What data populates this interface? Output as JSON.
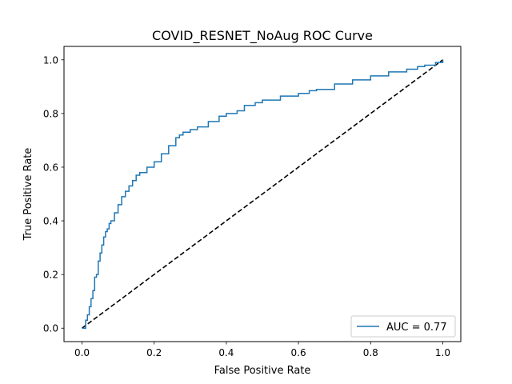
{
  "chart_data": {
    "type": "line",
    "title": "COVID_RESNET_NoAug ROC Curve",
    "xlabel": "False Positive Rate",
    "ylabel": "True Positive Rate",
    "xlim": [
      -0.05,
      1.05
    ],
    "ylim": [
      -0.05,
      1.05
    ],
    "xticks": [
      "0.0",
      "0.2",
      "0.4",
      "0.6",
      "0.8",
      "1.0"
    ],
    "yticks": [
      "0.0",
      "0.2",
      "0.4",
      "0.6",
      "0.8",
      "1.0"
    ],
    "grid": false,
    "legend_position": "lower right",
    "series": [
      {
        "name": "AUC = 0.77",
        "color": "#1f77b4",
        "style": "solid",
        "x": [
          0.0,
          0.01,
          0.015,
          0.02,
          0.025,
          0.03,
          0.035,
          0.04,
          0.045,
          0.05,
          0.055,
          0.06,
          0.065,
          0.07,
          0.075,
          0.08,
          0.09,
          0.1,
          0.11,
          0.12,
          0.13,
          0.14,
          0.15,
          0.16,
          0.18,
          0.2,
          0.22,
          0.24,
          0.26,
          0.27,
          0.28,
          0.3,
          0.32,
          0.35,
          0.38,
          0.4,
          0.43,
          0.45,
          0.48,
          0.5,
          0.55,
          0.6,
          0.63,
          0.65,
          0.7,
          0.75,
          0.8,
          0.85,
          0.9,
          0.93,
          0.95,
          0.98,
          1.0
        ],
        "y": [
          0.0,
          0.03,
          0.05,
          0.08,
          0.11,
          0.14,
          0.19,
          0.2,
          0.25,
          0.28,
          0.31,
          0.34,
          0.36,
          0.37,
          0.39,
          0.4,
          0.43,
          0.46,
          0.49,
          0.51,
          0.53,
          0.55,
          0.57,
          0.58,
          0.6,
          0.62,
          0.65,
          0.68,
          0.71,
          0.72,
          0.73,
          0.74,
          0.75,
          0.77,
          0.79,
          0.8,
          0.81,
          0.83,
          0.84,
          0.85,
          0.865,
          0.875,
          0.885,
          0.89,
          0.91,
          0.925,
          0.94,
          0.955,
          0.965,
          0.975,
          0.98,
          0.99,
          1.0
        ]
      },
      {
        "name": "",
        "color": "#000000",
        "style": "dashed",
        "x": [
          0.0,
          1.0
        ],
        "y": [
          0.0,
          1.0
        ]
      }
    ]
  }
}
